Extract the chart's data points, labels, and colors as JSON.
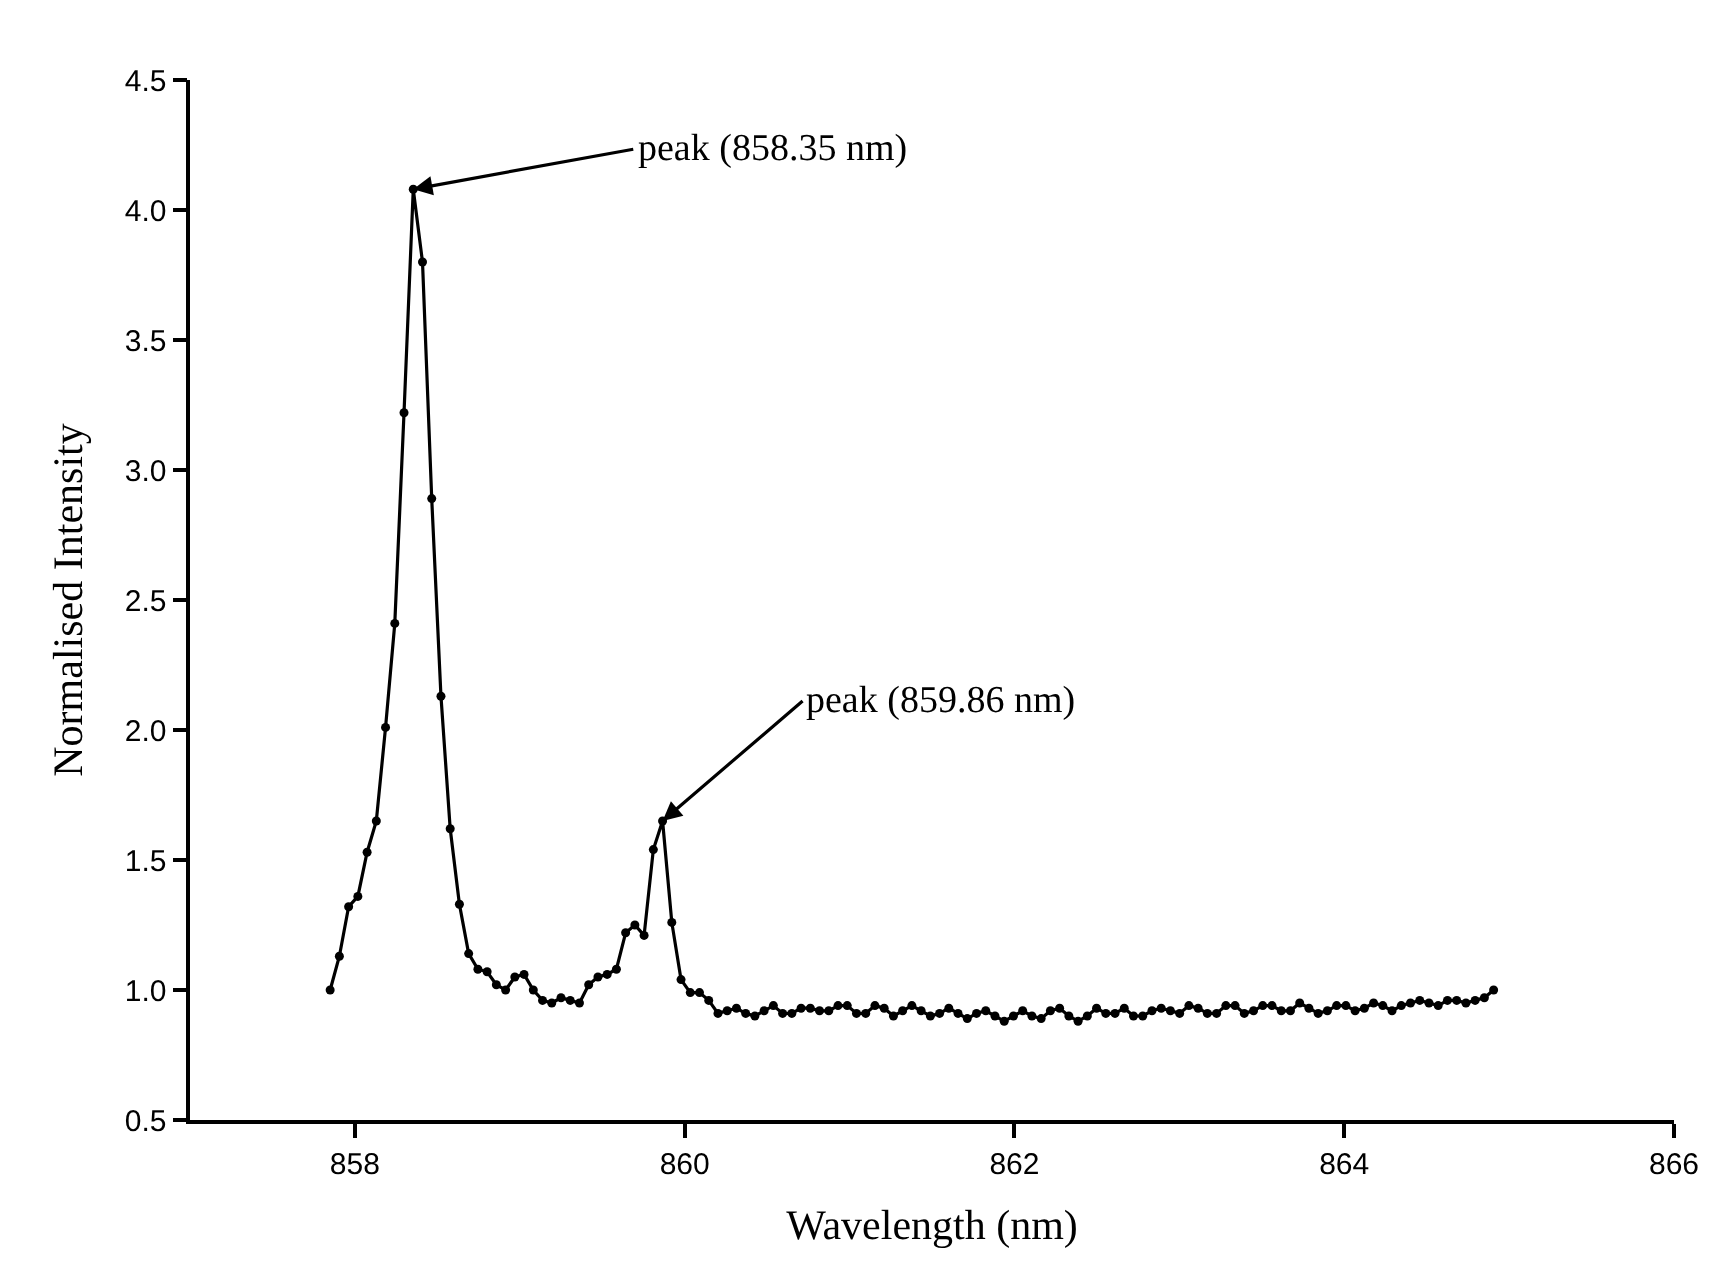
{
  "chart_data": {
    "type": "line",
    "xlabel": "Wavelength (nm)",
    "ylabel": "Normalised Intensity",
    "xlim": [
      857,
      866
    ],
    "xticks": [
      858,
      860,
      862,
      864,
      866
    ],
    "ylim": [
      0.5,
      4.5
    ],
    "yticks": [
      0.5,
      {
        "value": 1,
        "label": "1.0"
      },
      1.5,
      {
        "value": 2,
        "label": "2.0"
      },
      2.5,
      {
        "value": 3,
        "label": "3.0"
      },
      3.5,
      {
        "value": 4,
        "label": "4.0"
      },
      4.5
    ],
    "marker": "circle",
    "line_style": "solid",
    "annotations": [
      {
        "text": "peak (858.35 nm)",
        "x": 858.354,
        "y": 4.08
      },
      {
        "text": "peak (859.86 nm)",
        "x": 859.866,
        "y": 1.65
      }
    ],
    "series": [
      {
        "color": "#000000",
        "x": [
          857.85,
          857.906,
          857.962,
          858.018,
          858.074,
          858.13,
          858.186,
          858.242,
          858.298,
          858.354,
          858.41,
          858.466,
          858.522,
          858.578,
          858.634,
          858.69,
          858.746,
          858.802,
          858.858,
          858.914,
          858.97,
          859.026,
          859.082,
          859.138,
          859.194,
          859.25,
          859.306,
          859.362,
          859.418,
          859.474,
          859.53,
          859.586,
          859.642,
          859.698,
          859.754,
          859.81,
          859.866,
          859.922,
          859.978,
          860.034,
          860.09,
          860.146,
          860.202,
          860.258,
          860.314,
          860.37,
          860.426,
          860.482,
          860.538,
          860.594,
          860.65,
          860.706,
          860.762,
          860.818,
          860.874,
          860.93,
          860.986,
          861.042,
          861.098,
          861.154,
          861.21,
          861.266,
          861.322,
          861.378,
          861.434,
          861.49,
          861.546,
          861.602,
          861.658,
          861.714,
          861.77,
          861.826,
          861.882,
          861.938,
          861.994,
          862.05,
          862.106,
          862.162,
          862.218,
          862.274,
          862.33,
          862.386,
          862.442,
          862.498,
          862.554,
          862.61,
          862.666,
          862.722,
          862.778,
          862.834,
          862.89,
          862.946,
          863.002,
          863.058,
          863.114,
          863.17,
          863.226,
          863.282,
          863.338,
          863.394,
          863.45,
          863.506,
          863.562,
          863.618,
          863.674,
          863.73,
          863.786,
          863.842,
          863.898,
          863.954,
          864.01,
          864.066,
          864.122,
          864.178,
          864.234,
          864.29,
          864.346,
          864.402,
          864.458,
          864.514,
          864.57,
          864.626,
          864.682,
          864.738,
          864.794,
          864.85,
          864.906
        ],
        "values": [
          1.0,
          1.13,
          1.32,
          1.36,
          1.53,
          1.65,
          2.01,
          2.41,
          3.22,
          4.08,
          3.8,
          2.89,
          2.13,
          1.62,
          1.33,
          1.14,
          1.08,
          1.07,
          1.02,
          1.0,
          1.05,
          1.06,
          1.0,
          0.96,
          0.95,
          0.97,
          0.96,
          0.95,
          1.02,
          1.05,
          1.06,
          1.08,
          1.22,
          1.25,
          1.21,
          1.54,
          1.65,
          1.26,
          1.04,
          0.99,
          0.99,
          0.96,
          0.91,
          0.92,
          0.93,
          0.91,
          0.9,
          0.92,
          0.94,
          0.91,
          0.91,
          0.93,
          0.93,
          0.92,
          0.92,
          0.94,
          0.94,
          0.91,
          0.91,
          0.94,
          0.93,
          0.9,
          0.92,
          0.94,
          0.92,
          0.9,
          0.91,
          0.93,
          0.91,
          0.89,
          0.91,
          0.92,
          0.9,
          0.88,
          0.9,
          0.92,
          0.9,
          0.89,
          0.92,
          0.93,
          0.9,
          0.88,
          0.9,
          0.93,
          0.91,
          0.91,
          0.93,
          0.9,
          0.9,
          0.92,
          0.93,
          0.92,
          0.91,
          0.94,
          0.93,
          0.91,
          0.91,
          0.94,
          0.94,
          0.91,
          0.92,
          0.94,
          0.94,
          0.92,
          0.92,
          0.95,
          0.93,
          0.91,
          0.92,
          0.94,
          0.94,
          0.92,
          0.93,
          0.95,
          0.94,
          0.92,
          0.94,
          0.95,
          0.96,
          0.95,
          0.94,
          0.96,
          0.96,
          0.95,
          0.96,
          0.97,
          1.0
        ]
      }
    ]
  }
}
